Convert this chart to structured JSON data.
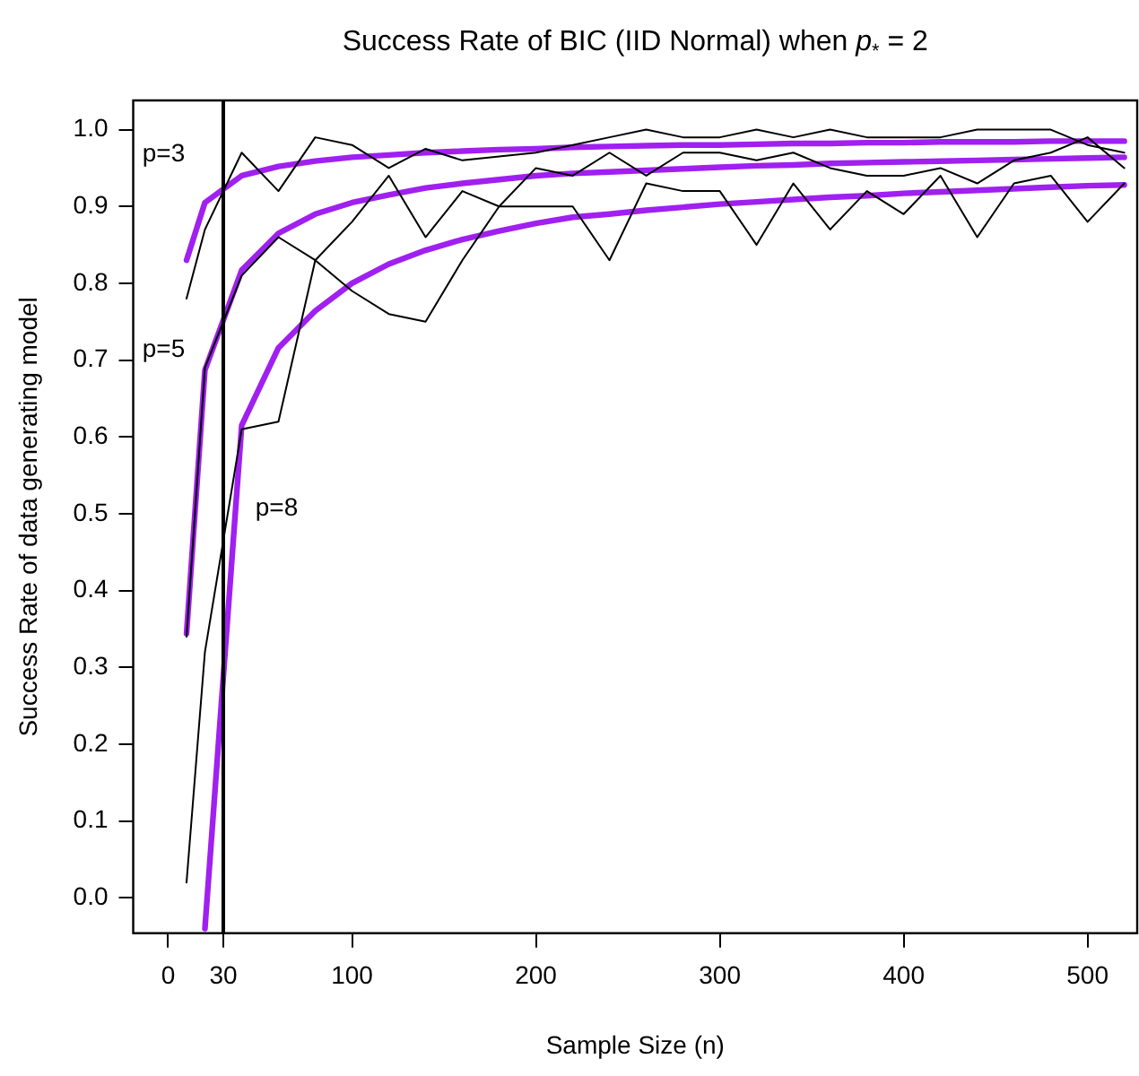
{
  "chart_data": {
    "type": "line",
    "title": "Success Rate of BIC (IID Normal) when p$_{*}$ = 2",
    "xlabel": "Sample Size (n)",
    "ylabel": "Success Rate of data generating model",
    "x": [
      10,
      20,
      40,
      60,
      80,
      100,
      120,
      140,
      160,
      180,
      200,
      220,
      240,
      260,
      280,
      300,
      320,
      340,
      360,
      380,
      400,
      420,
      440,
      460,
      480,
      500,
      520
    ],
    "series": [
      {
        "color": "#000000",
        "values": [
          0.78,
          0.87,
          0.97,
          0.92,
          0.99,
          0.98,
          0.95,
          0.975,
          0.96,
          0.965,
          0.97,
          0.98,
          0.99,
          1.0,
          0.99,
          0.99,
          1.0,
          0.99,
          1.0,
          0.99,
          0.99,
          0.99,
          1.0,
          1.0,
          1.0,
          0.98,
          0.97
        ]
      },
      {
        "color": "#000000",
        "values": [
          0.34,
          0.69,
          0.81,
          0.86,
          0.83,
          0.79,
          0.76,
          0.75,
          0.83,
          0.9,
          0.9,
          0.9,
          0.83,
          0.93,
          0.92,
          0.92,
          0.85,
          0.93,
          0.87,
          0.92,
          0.89,
          0.94,
          0.86,
          0.93,
          0.94,
          0.88,
          0.93
        ]
      },
      {
        "color": "#000000",
        "values": [
          0.02,
          0.32,
          0.61,
          0.62,
          0.83,
          0.88,
          0.94,
          0.86,
          0.92,
          0.9,
          0.95,
          0.94,
          0.97,
          0.94,
          0.97,
          0.97,
          0.96,
          0.97,
          0.95,
          0.94,
          0.94,
          0.95,
          0.93,
          0.96,
          0.97,
          0.99,
          0.95
        ]
      },
      {
        "color": "#a020f0",
        "values": [
          0.83,
          0.905,
          0.94,
          0.952,
          0.959,
          0.964,
          0.967,
          0.97,
          0.972,
          0.974,
          0.975,
          0.977,
          0.978,
          0.979,
          0.98,
          0.98,
          0.981,
          0.982,
          0.982,
          0.983,
          0.983,
          0.984,
          0.984,
          0.984,
          0.985,
          0.985,
          0.985
        ]
      },
      {
        "color": "#a020f0",
        "values": [
          0.344,
          0.687,
          0.817,
          0.865,
          0.89,
          0.905,
          0.915,
          0.924,
          0.93,
          0.935,
          0.94,
          0.943,
          0.945,
          0.947,
          0.949,
          0.951,
          0.953,
          0.954,
          0.956,
          0.957,
          0.958,
          0.959,
          0.96,
          0.961,
          0.962,
          0.963,
          0.964
        ]
      },
      {
        "color": "#a020f0",
        "values": [
          null,
          -0.04,
          0.615,
          0.716,
          0.764,
          0.8,
          0.825,
          0.843,
          0.857,
          0.868,
          0.878,
          0.886,
          0.89,
          0.895,
          0.899,
          0.903,
          0.906,
          0.909,
          0.912,
          0.914,
          0.917,
          0.919,
          0.921,
          0.923,
          0.925,
          0.927,
          0.928
        ]
      }
    ],
    "xlim": [
      -19,
      527
    ],
    "ylim": [
      -0.046,
      1.038
    ],
    "xticks": [
      0,
      30,
      100,
      200,
      300,
      400,
      500
    ],
    "yticks": [
      {
        "value": 0,
        "label": "0.0"
      },
      {
        "value": 0.1,
        "label": "0.1"
      },
      {
        "value": 0.2,
        "label": "0.2"
      },
      {
        "value": 0.3,
        "label": "0.3"
      },
      {
        "value": 0.4,
        "label": "0.4"
      },
      {
        "value": 0.5,
        "label": "0.5"
      },
      {
        "value": 0.6,
        "label": "0.6"
      },
      {
        "value": 0.7,
        "label": "0.7"
      },
      {
        "value": 0.8,
        "label": "0.8"
      },
      {
        "value": 0.9,
        "label": "0.9"
      },
      {
        "value": 1,
        "label": "1.0"
      }
    ],
    "ref_lines": [
      {
        "axis": "x",
        "value": 30,
        "color": "#000000"
      }
    ],
    "annotations": [
      "p=3",
      "p=5",
      "p=8"
    ],
    "grid": false,
    "legend": false,
    "marker": "none",
    "line_style": "solid"
  }
}
